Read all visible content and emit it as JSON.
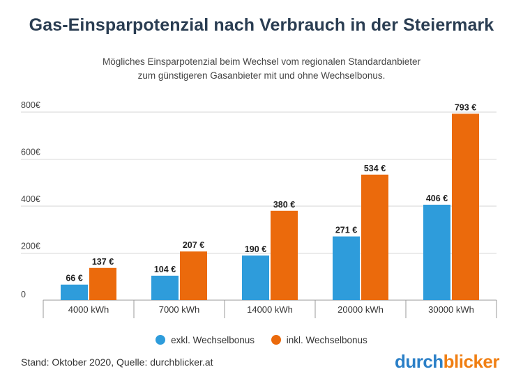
{
  "header": {
    "title": "Gas-Einsparpotenzial nach Verbrauch in der Steiermark",
    "subtitle_line1": "Mögliches Einsparpotenzial beim Wechsel vom regionalen Standardanbieter",
    "subtitle_line2": "zum günstigeren Gasanbieter mit und ohne Wechselbonus."
  },
  "colors": {
    "exkl": "#2e9cdb",
    "inkl": "#eb6a0c",
    "title": "#2a3d52"
  },
  "chart_data": {
    "type": "bar",
    "title": "Gas-Einsparpotenzial nach Verbrauch in der Steiermark",
    "categories": [
      "4000 kWh",
      "7000 kWh",
      "14000 kWh",
      "20000 kWh",
      "30000 kWh"
    ],
    "series": [
      {
        "name": "exkl. Wechselbonus",
        "values": [
          66,
          104,
          190,
          271,
          406
        ],
        "labels": [
          "66 €",
          "104 €",
          "190 €",
          "271 €",
          "406 €"
        ]
      },
      {
        "name": "inkl. Wechselbonus",
        "values": [
          137,
          207,
          380,
          534,
          793
        ],
        "labels": [
          "137 €",
          "207 €",
          "380 €",
          "534 €",
          "793 €"
        ]
      }
    ],
    "yticks": [
      0,
      200,
      400,
      600,
      800
    ],
    "ytick_labels": [
      "0",
      "200€",
      "400€",
      "600€",
      "800€"
    ],
    "ylim": [
      0,
      800
    ],
    "grid": true,
    "legend": "bottom-center",
    "xlabel": "",
    "ylabel": ""
  },
  "legend": {
    "exkl_label": "exkl. Wechselbonus",
    "inkl_label": "inkl. Wechselbonus"
  },
  "footer": {
    "source": "Stand: Oktober 2020, Quelle: durchblicker.at"
  },
  "brand": {
    "part1": "durch",
    "part2": "blicker"
  }
}
